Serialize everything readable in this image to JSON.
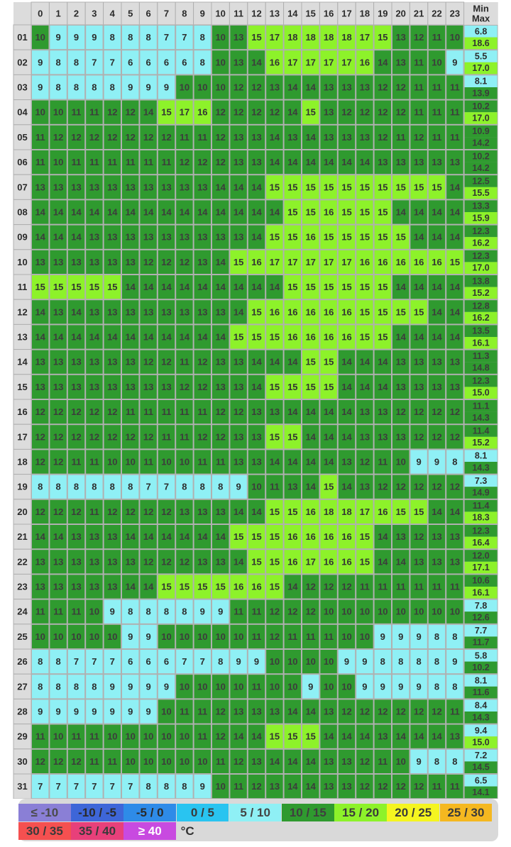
{
  "chart_data": {
    "type": "heatmap",
    "x_header_hours": [
      "0",
      "1",
      "2",
      "3",
      "4",
      "5",
      "6",
      "7",
      "8",
      "9",
      "10",
      "11",
      "12",
      "13",
      "14",
      "15",
      "16",
      "17",
      "18",
      "19",
      "20",
      "21",
      "22",
      "23"
    ],
    "x_header_min": "Min",
    "x_header_max": "Max",
    "y_days": [
      "01",
      "02",
      "03",
      "04",
      "05",
      "06",
      "07",
      "08",
      "09",
      "10",
      "11",
      "12",
      "13",
      "14",
      "15",
      "16",
      "17",
      "18",
      "19",
      "20",
      "21",
      "22",
      "23",
      "24",
      "25",
      "26",
      "27",
      "28",
      "29",
      "30",
      "31"
    ],
    "rows": [
      {
        "values": [
          10,
          9,
          9,
          9,
          8,
          8,
          8,
          7,
          7,
          8,
          10,
          13,
          15,
          17,
          18,
          18,
          18,
          18,
          17,
          15,
          13,
          12,
          11,
          10
        ],
        "min": "6.8",
        "max": "18.6"
      },
      {
        "values": [
          9,
          8,
          8,
          7,
          7,
          6,
          6,
          6,
          6,
          8,
          10,
          13,
          14,
          16,
          17,
          17,
          17,
          17,
          16,
          14,
          13,
          11,
          10,
          9
        ],
        "min": "5.5",
        "max": "17.0"
      },
      {
        "values": [
          9,
          8,
          8,
          8,
          8,
          9,
          9,
          9,
          10,
          10,
          10,
          12,
          12,
          13,
          14,
          14,
          13,
          13,
          13,
          12,
          12,
          11,
          11,
          11
        ],
        "min": "8.1",
        "max": "13.9"
      },
      {
        "values": [
          10,
          10,
          11,
          11,
          12,
          12,
          14,
          15,
          17,
          16,
          12,
          12,
          12,
          12,
          14,
          15,
          13,
          12,
          12,
          12,
          12,
          11,
          11,
          11
        ],
        "min": "10.2",
        "max": "17.0"
      },
      {
        "values": [
          11,
          12,
          12,
          12,
          12,
          12,
          12,
          12,
          11,
          11,
          12,
          13,
          13,
          14,
          13,
          14,
          13,
          13,
          13,
          12,
          11,
          12,
          11,
          11
        ],
        "min": "10.9",
        "max": "14.2"
      },
      {
        "values": [
          11,
          10,
          11,
          11,
          11,
          11,
          11,
          11,
          12,
          12,
          12,
          13,
          13,
          14,
          14,
          14,
          14,
          14,
          14,
          13,
          13,
          13,
          13,
          13
        ],
        "min": "10.2",
        "max": "14.2"
      },
      {
        "values": [
          13,
          13,
          13,
          13,
          13,
          13,
          13,
          13,
          13,
          13,
          14,
          14,
          14,
          15,
          15,
          15,
          15,
          15,
          15,
          15,
          15,
          15,
          15,
          14
        ],
        "min": "12.5",
        "max": "15.5"
      },
      {
        "values": [
          14,
          14,
          14,
          14,
          14,
          14,
          14,
          14,
          14,
          14,
          14,
          14,
          14,
          14,
          15,
          15,
          16,
          15,
          15,
          15,
          14,
          14,
          14,
          14
        ],
        "min": "13.3",
        "max": "15.9"
      },
      {
        "values": [
          14,
          14,
          14,
          13,
          13,
          13,
          13,
          13,
          13,
          13,
          13,
          13,
          14,
          15,
          15,
          16,
          15,
          15,
          15,
          15,
          15,
          14,
          14,
          14
        ],
        "min": "12.3",
        "max": "16.2"
      },
      {
        "values": [
          13,
          13,
          13,
          13,
          13,
          13,
          12,
          12,
          12,
          13,
          14,
          15,
          16,
          17,
          17,
          17,
          17,
          17,
          16,
          16,
          16,
          16,
          16,
          15
        ],
        "min": "12.3",
        "max": "17.0"
      },
      {
        "values": [
          15,
          15,
          15,
          15,
          15,
          14,
          14,
          14,
          14,
          14,
          14,
          14,
          14,
          14,
          15,
          15,
          15,
          15,
          15,
          15,
          14,
          14,
          14,
          14
        ],
        "min": "13.8",
        "max": "15.2"
      },
      {
        "values": [
          14,
          13,
          14,
          13,
          13,
          13,
          13,
          13,
          13,
          13,
          13,
          14,
          15,
          16,
          16,
          16,
          16,
          16,
          15,
          15,
          15,
          15,
          14,
          14
        ],
        "min": "12.8",
        "max": "16.2"
      },
      {
        "values": [
          14,
          14,
          14,
          14,
          14,
          14,
          14,
          14,
          14,
          14,
          14,
          15,
          15,
          15,
          16,
          16,
          16,
          16,
          15,
          15,
          14,
          14,
          14,
          14
        ],
        "min": "13.5",
        "max": "16.1"
      },
      {
        "values": [
          13,
          13,
          13,
          13,
          13,
          13,
          12,
          12,
          11,
          12,
          13,
          13,
          14,
          14,
          14,
          15,
          15,
          14,
          14,
          14,
          13,
          13,
          13,
          13
        ],
        "min": "11.3",
        "max": "14.8"
      },
      {
        "values": [
          13,
          13,
          13,
          13,
          13,
          13,
          13,
          13,
          12,
          12,
          13,
          13,
          14,
          15,
          15,
          15,
          15,
          14,
          14,
          14,
          13,
          13,
          13,
          13
        ],
        "min": "12.3",
        "max": "15.0"
      },
      {
        "values": [
          12,
          12,
          12,
          12,
          12,
          11,
          11,
          11,
          11,
          11,
          12,
          12,
          13,
          13,
          14,
          14,
          14,
          14,
          13,
          13,
          12,
          12,
          12,
          12
        ],
        "min": "11.1",
        "max": "14.3"
      },
      {
        "values": [
          12,
          12,
          12,
          12,
          12,
          12,
          12,
          11,
          11,
          12,
          12,
          13,
          13,
          15,
          15,
          14,
          14,
          14,
          13,
          13,
          13,
          12,
          12,
          12
        ],
        "min": "11.4",
        "max": "15.2"
      },
      {
        "values": [
          12,
          12,
          11,
          11,
          10,
          10,
          11,
          10,
          10,
          11,
          11,
          13,
          13,
          14,
          14,
          14,
          14,
          13,
          12,
          11,
          10,
          9,
          9,
          8
        ],
        "min": "8.1",
        "max": "14.3"
      },
      {
        "values": [
          8,
          8,
          8,
          8,
          8,
          8,
          7,
          7,
          8,
          8,
          8,
          9,
          10,
          11,
          13,
          14,
          15,
          14,
          13,
          12,
          12,
          12,
          12,
          12
        ],
        "min": "7.3",
        "max": "14.9"
      },
      {
        "values": [
          12,
          12,
          12,
          11,
          12,
          12,
          12,
          12,
          13,
          13,
          13,
          14,
          14,
          15,
          15,
          16,
          18,
          18,
          17,
          16,
          15,
          15,
          14,
          14
        ],
        "min": "11.4",
        "max": "18.3"
      },
      {
        "values": [
          14,
          14,
          13,
          13,
          13,
          14,
          14,
          14,
          14,
          14,
          14,
          15,
          15,
          15,
          16,
          16,
          16,
          16,
          15,
          14,
          13,
          12,
          13,
          13
        ],
        "min": "12.3",
        "max": "16.4"
      },
      {
        "values": [
          13,
          13,
          13,
          13,
          13,
          13,
          12,
          12,
          12,
          13,
          13,
          14,
          15,
          15,
          16,
          17,
          16,
          16,
          15,
          14,
          14,
          13,
          13,
          13
        ],
        "min": "12.0",
        "max": "17.1"
      },
      {
        "values": [
          13,
          13,
          13,
          13,
          13,
          14,
          14,
          15,
          15,
          15,
          15,
          16,
          16,
          15,
          14,
          12,
          12,
          12,
          11,
          11,
          11,
          11,
          11,
          11
        ],
        "min": "10.6",
        "max": "16.1"
      },
      {
        "values": [
          11,
          11,
          11,
          10,
          9,
          8,
          8,
          8,
          8,
          9,
          9,
          11,
          11,
          12,
          12,
          12,
          10,
          10,
          10,
          10,
          10,
          10,
          10,
          10
        ],
        "min": "7.8",
        "max": "12.6"
      },
      {
        "values": [
          10,
          10,
          10,
          10,
          10,
          9,
          9,
          10,
          10,
          10,
          10,
          10,
          11,
          12,
          11,
          11,
          11,
          10,
          10,
          9,
          9,
          9,
          8,
          8
        ],
        "min": "7.7",
        "max": "11.7"
      },
      {
        "values": [
          8,
          8,
          7,
          7,
          7,
          6,
          6,
          6,
          7,
          7,
          8,
          9,
          9,
          10,
          10,
          10,
          10,
          9,
          9,
          8,
          8,
          8,
          8,
          9
        ],
        "min": "5.8",
        "max": "10.2"
      },
      {
        "values": [
          8,
          8,
          8,
          8,
          9,
          9,
          9,
          9,
          10,
          10,
          10,
          10,
          11,
          10,
          10,
          9,
          10,
          10,
          9,
          9,
          9,
          9,
          8,
          8
        ],
        "min": "8.1",
        "max": "11.6"
      },
      {
        "values": [
          9,
          9,
          9,
          9,
          9,
          9,
          9,
          10,
          11,
          11,
          12,
          13,
          13,
          13,
          14,
          14,
          13,
          12,
          12,
          12,
          12,
          12,
          12,
          11
        ],
        "min": "8.4",
        "max": "14.3"
      },
      {
        "values": [
          11,
          10,
          11,
          11,
          10,
          10,
          10,
          10,
          10,
          11,
          12,
          14,
          14,
          15,
          15,
          15,
          14,
          14,
          14,
          13,
          14,
          14,
          14,
          13
        ],
        "min": "9.4",
        "max": "15.0"
      },
      {
        "values": [
          12,
          12,
          12,
          11,
          11,
          10,
          10,
          10,
          10,
          10,
          11,
          12,
          13,
          14,
          14,
          14,
          13,
          13,
          12,
          11,
          10,
          9,
          8,
          8
        ],
        "min": "7.2",
        "max": "14.5"
      },
      {
        "values": [
          7,
          7,
          7,
          7,
          7,
          7,
          8,
          8,
          8,
          9,
          10,
          11,
          12,
          13,
          14,
          14,
          13,
          13,
          12,
          12,
          12,
          12,
          11,
          11
        ],
        "min": "6.5",
        "max": "14.1"
      }
    ],
    "legend": [
      {
        "label": "≤ -10",
        "color": "#8a7fd6",
        "text": "#4a4a4a"
      },
      {
        "label": "-10 / -5",
        "color": "#3e66d8",
        "text": "#2a2a2a"
      },
      {
        "label": "-5 / 0",
        "color": "#2e8be8",
        "text": "#2a2a2a"
      },
      {
        "label": "0 / 5",
        "color": "#29c4f0",
        "text": "#3a3a3a"
      },
      {
        "label": "5 / 10",
        "color": "#8ff0f5",
        "text": "#444444"
      },
      {
        "label": "10 / 15",
        "color": "#2f9a2f",
        "text": "#3f3f3f"
      },
      {
        "label": "15 / 20",
        "color": "#8df22a",
        "text": "#3a3a3a"
      },
      {
        "label": "20 / 25",
        "color": "#f5f520",
        "text": "#3a3a3a"
      },
      {
        "label": "25 / 30",
        "color": "#f5b820",
        "text": "#3a3a3a"
      },
      {
        "label": "30 / 35",
        "color": "#f55050",
        "text": "#3a3a3a"
      },
      {
        "label": "35 / 40",
        "color": "#e8407a",
        "text": "#3a3a3a"
      },
      {
        "label": "≥ 40",
        "color": "#c84ae0",
        "text": "#ffffff"
      }
    ],
    "unit": "°C",
    "colors": {
      "cell_5_10": "#8ff0f5",
      "cell_10_15": "#2f9a2f",
      "cell_15_20": "#8df22a",
      "header_bg": "#dcdcdc",
      "grid": "#b0b0b0"
    }
  }
}
